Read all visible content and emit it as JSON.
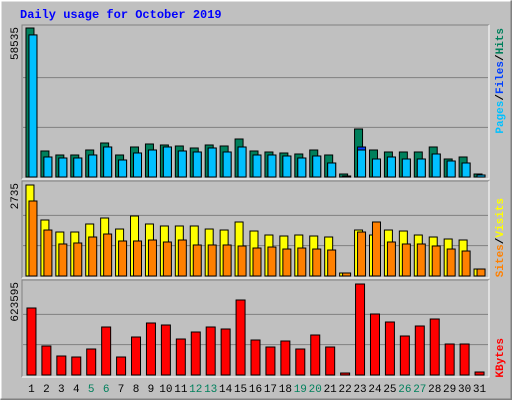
{
  "chart_data": [
    {
      "type": "bar",
      "title": "Daily usage for October 2019",
      "ylim": [
        0,
        58535
      ],
      "yticks": [
        58535
      ],
      "grid": true,
      "legend_separator": "/",
      "series": [
        {
          "name": "Hits",
          "color": "#00805C",
          "values": [
            58535,
            10218,
            8646,
            8646,
            10611,
            13362,
            8646,
            11790,
            12969,
            12576,
            12183,
            11397,
            12576,
            12183,
            14934,
            10218,
            9825,
            9432,
            9039,
            10611,
            8646,
            1179,
            18864,
            10611,
            9825,
            9825,
            9825,
            11790,
            7074,
            7860,
            1179
          ]
        },
        {
          "name": "Files",
          "color": "#0040FF",
          "values": [
            55806,
            7860,
            7467,
            7467,
            8646,
            11790,
            6681,
            9432,
            10611,
            11790,
            10218,
            9825,
            11397,
            9825,
            11790,
            8646,
            8646,
            8253,
            7467,
            8253,
            5502,
            393,
            11790,
            7074,
            7860,
            7074,
            7074,
            9039,
            6288,
            5502,
            786
          ]
        },
        {
          "name": "Pages",
          "color": "#00C0FF",
          "values": [
            55806,
            7860,
            7467,
            7467,
            8646,
            11790,
            6681,
            9432,
            10611,
            11790,
            10218,
            9825,
            11397,
            9825,
            11790,
            8646,
            8646,
            8253,
            7467,
            8253,
            5502,
            393,
            10611,
            7074,
            7860,
            7074,
            7074,
            9039,
            6288,
            5502,
            786
          ]
        }
      ]
    },
    {
      "type": "bar",
      "ylim": [
        0,
        2735
      ],
      "yticks": [
        2735
      ],
      "grid": true,
      "legend_separator": "/",
      "series": [
        {
          "name": "Visits",
          "color": "#FFFF00",
          "values": [
            2735,
            1683,
            1322,
            1322,
            1563,
            1743,
            1412,
            1803,
            1563,
            1503,
            1503,
            1503,
            1412,
            1382,
            1623,
            1352,
            1232,
            1202,
            1232,
            1202,
            1172,
            90,
            1382,
            1232,
            1382,
            1352,
            1232,
            1172,
            1112,
            1082,
            210
          ]
        },
        {
          "name": "Sites",
          "color": "#FF8000",
          "values": [
            2254,
            1382,
            962,
            992,
            1172,
            1262,
            1052,
            1052,
            1082,
            1022,
            1082,
            932,
            932,
            932,
            902,
            841,
            871,
            811,
            841,
            811,
            781,
            90,
            1322,
            1623,
            1022,
            962,
            962,
            902,
            811,
            751,
            210
          ]
        }
      ]
    },
    {
      "type": "bar",
      "ylim": [
        0,
        623595
      ],
      "yticks": [
        623595
      ],
      "grid": true,
      "categories": [
        "1",
        "2",
        "3",
        "4",
        "5",
        "6",
        "7",
        "8",
        "9",
        "10",
        "11",
        "12",
        "13",
        "14",
        "15",
        "16",
        "17",
        "18",
        "19",
        "20",
        "21",
        "22",
        "23",
        "24",
        "25",
        "26",
        "27",
        "28",
        "29",
        "30",
        "31"
      ],
      "weekends": [
        "5",
        "6",
        "12",
        "13",
        "19",
        "20",
        "26",
        "27"
      ],
      "weekend_color": "#00805C",
      "series": [
        {
          "name": "KBytes",
          "color": "#FF0000",
          "values": [
            459151,
            198737,
            130207,
            123354,
            178178,
            328944,
            123354,
            260414,
            356356,
            342650,
            246708,
            294679,
            328944,
            315238,
            513975,
            239855,
            191884,
            233002,
            178178,
            274120,
            191884,
            13706,
            623595,
            418033,
            363209,
            267267,
            335797,
            383768,
            212443,
            212443,
            20559
          ]
        }
      ]
    }
  ]
}
